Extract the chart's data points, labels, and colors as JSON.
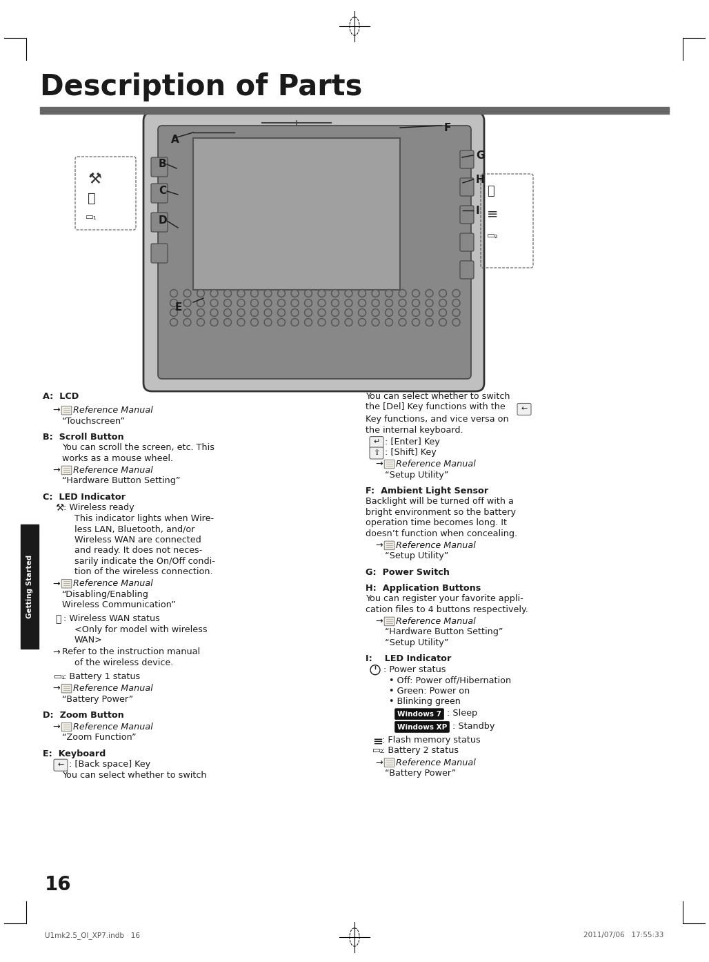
{
  "title": "Description of Parts",
  "bg_color": "#ffffff",
  "page_number": "16",
  "footer_left": "U1mk2.5_OI_XP7.indb   16",
  "footer_right": "2011/07/06   17:55:33",
  "sidebar_text": "Getting Started",
  "sidebar_bg": "#1a1a1a",
  "title_bar_color": "#666666",
  "text_color": "#1a1a1a",
  "ref_color": "#000000",
  "italic_color": "#000000",
  "win7_color": "#1a1a1a",
  "winxp_color": "#1a1a1a"
}
